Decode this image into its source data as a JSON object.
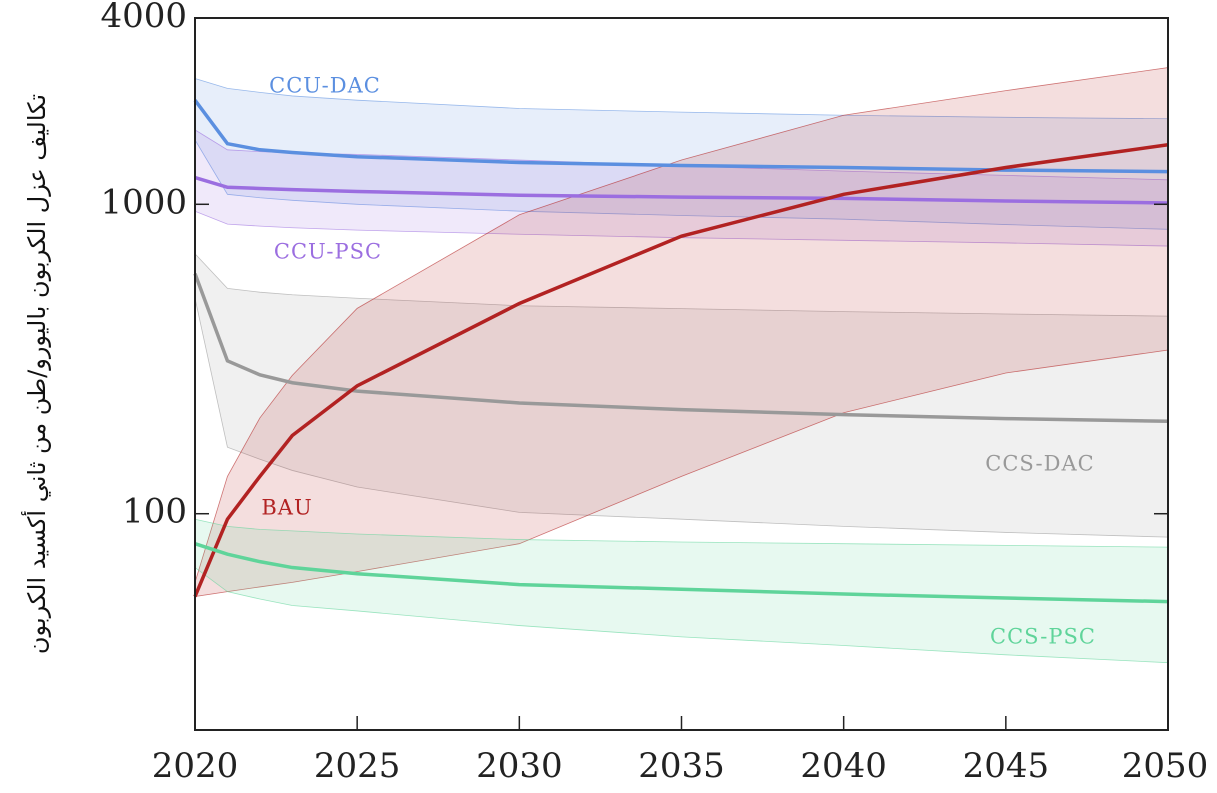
{
  "chart_data": {
    "type": "line",
    "y_label": "تكاليف عزل الكربون باليورو/طن من ثاني أكسيد الكربون",
    "log_scale": true,
    "x": [
      2020,
      2021,
      2022,
      2023,
      2025,
      2030,
      2035,
      2040,
      2045,
      2050
    ],
    "xlim": [
      2020,
      2050
    ],
    "xticks": [
      2020,
      2025,
      2030,
      2035,
      2040,
      2045,
      2050
    ],
    "ylim": [
      20,
      4000
    ],
    "yticks": [
      100,
      1000,
      4000
    ],
    "series": [
      {
        "name": "CCU-DAC",
        "color": "#5b8fe0",
        "values": [
          2170,
          1570,
          1500,
          1470,
          1425,
          1365,
          1335,
          1315,
          1290,
          1275
        ],
        "upper": [
          2550,
          2370,
          2300,
          2240,
          2170,
          2040,
          1985,
          1940,
          1910,
          1890
        ],
        "lower": [
          1615,
          1077,
          1050,
          1030,
          1000,
          950,
          920,
          895,
          860,
          830
        ]
      },
      {
        "name": "CCU-PSC",
        "color": "#9b6ee0",
        "values": [
          1220,
          1135,
          1125,
          1115,
          1100,
          1070,
          1055,
          1045,
          1025,
          1010
        ],
        "upper": [
          1740,
          1500,
          1480,
          1465,
          1450,
          1390,
          1330,
          1280,
          1240,
          1200
        ],
        "lower": [
          950,
          863,
          850,
          840,
          825,
          800,
          780,
          765,
          750,
          733
        ]
      },
      {
        "name": "CCS-DAC",
        "color": "#999999",
        "values": [
          597,
          312,
          281,
          265,
          249,
          228,
          217,
          209,
          203,
          199
        ],
        "upper": [
          692,
          535,
          520,
          510,
          497,
          470,
          460,
          450,
          442,
          435
        ],
        "lower": [
          497,
          164,
          150,
          138,
          122,
          101,
          96,
          91,
          87,
          84
        ]
      },
      {
        "name": "BAU",
        "color": "#b22222",
        "values": [
          54,
          96,
          132,
          179,
          259,
          478,
          789,
          1077,
          1315,
          1557
        ],
        "upper": [
          60,
          132,
          204,
          280,
          461,
          925,
          1390,
          1940,
          2330,
          2766
        ],
        "lower": [
          54,
          56,
          58,
          60,
          65,
          80,
          132,
          212,
          285,
          338
        ]
      },
      {
        "name": "CCS-PSC",
        "color": "#5fd49a",
        "values": [
          80,
          74,
          70,
          67,
          64,
          59,
          57,
          55,
          53.4,
          52
        ],
        "upper": [
          96,
          91,
          89,
          88,
          86,
          82.5,
          81,
          80,
          79,
          78
        ],
        "lower": [
          67,
          56,
          53,
          50.5,
          48.5,
          43.5,
          40,
          37.5,
          35,
          33
        ]
      }
    ]
  }
}
